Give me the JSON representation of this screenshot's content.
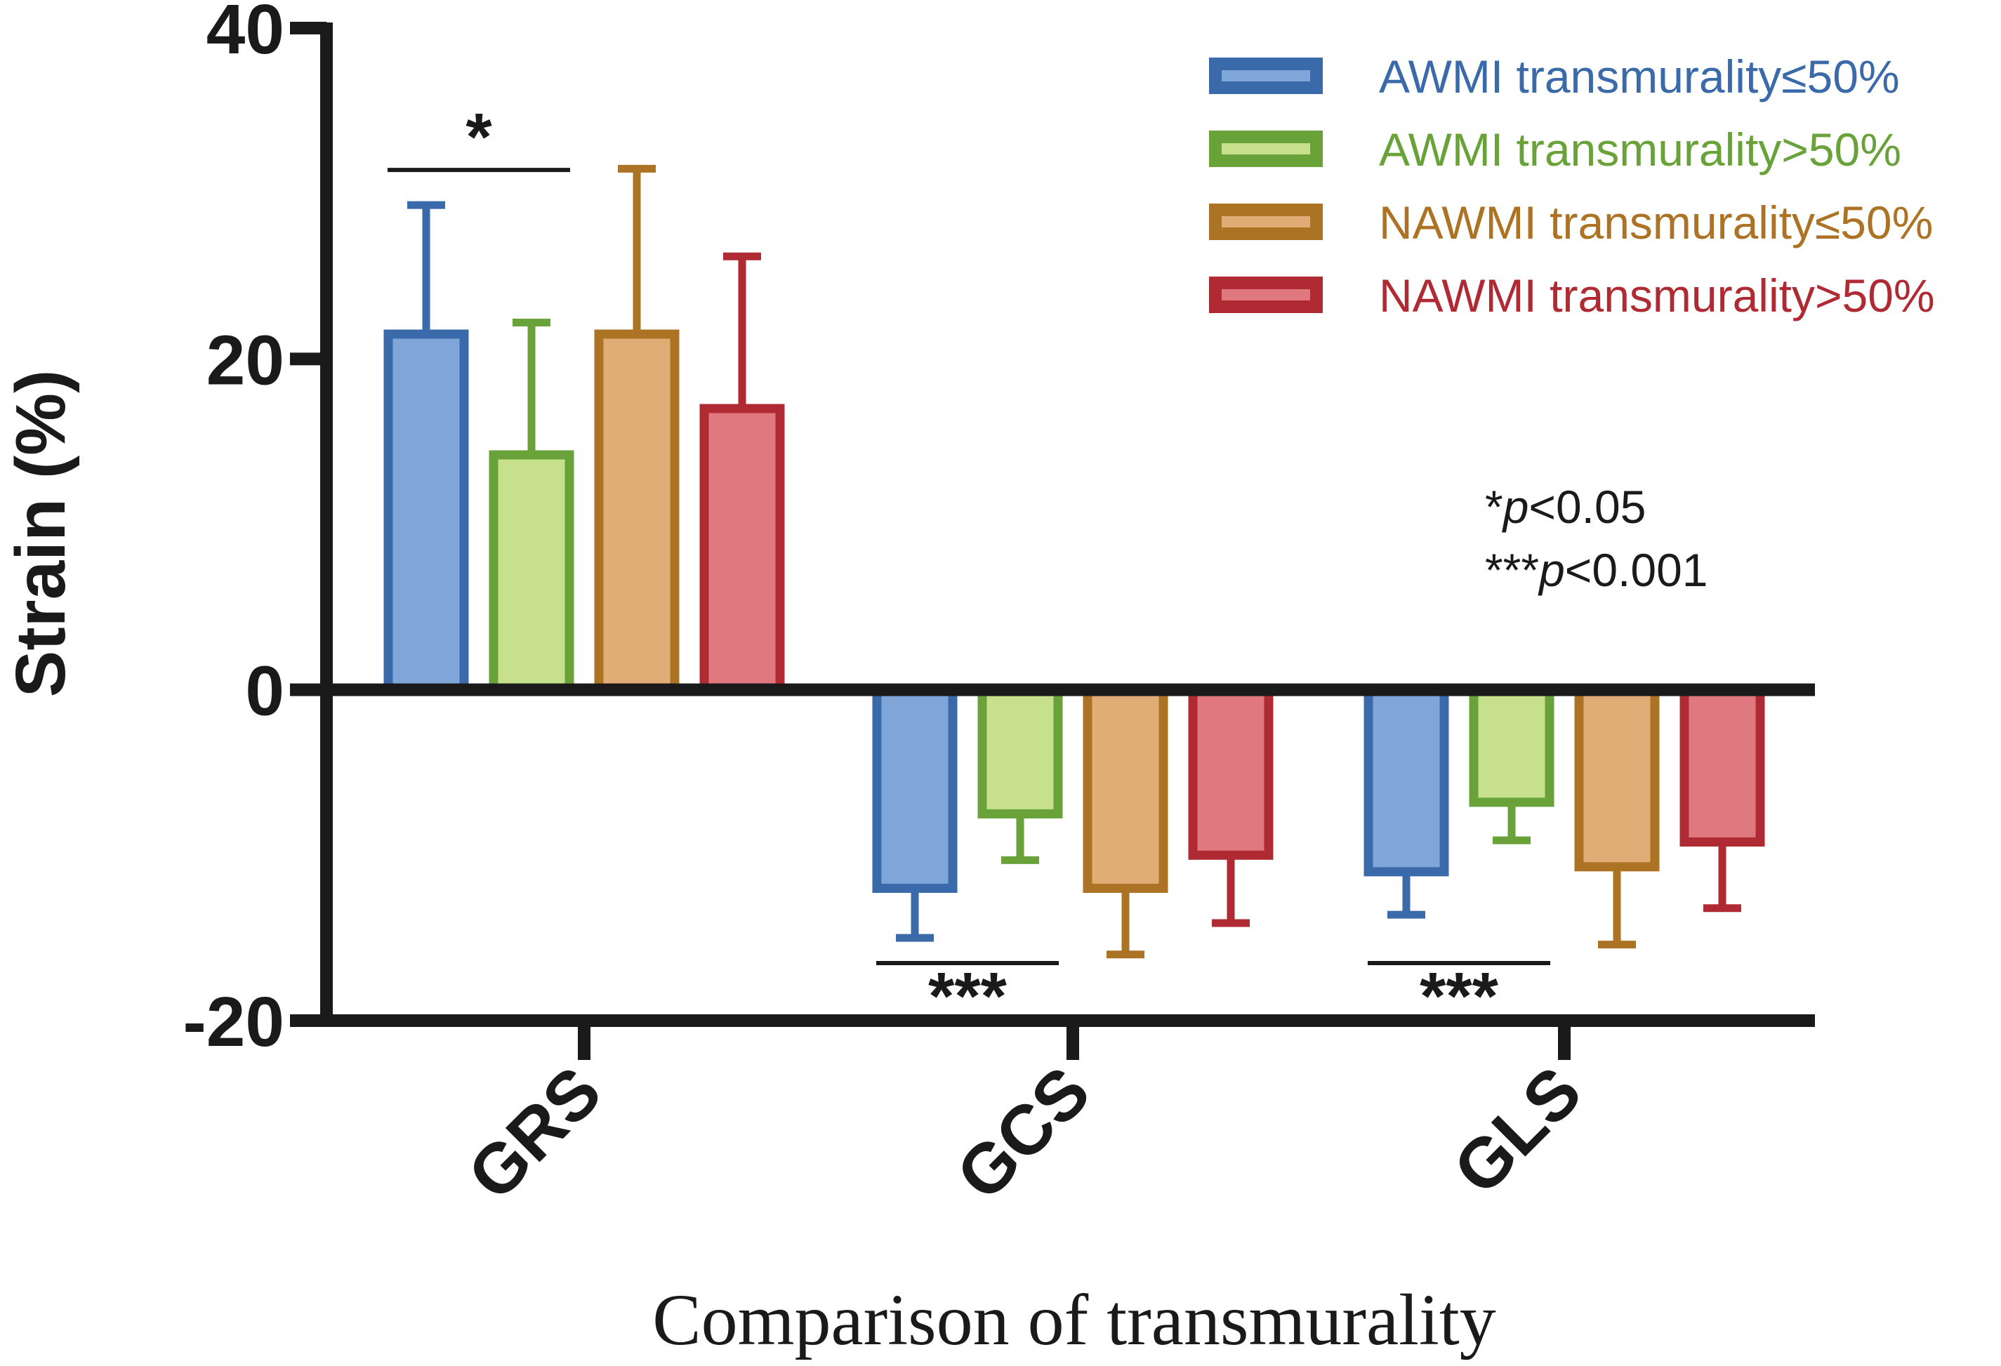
{
  "chart_data": {
    "type": "bar",
    "title": "",
    "xlabel": "Comparison of transmurality",
    "ylabel": "Strain (%)",
    "ylim": [
      -20,
      40
    ],
    "yticks": [
      40,
      20,
      0,
      -20
    ],
    "ytick_labels": [
      "40",
      "20",
      "0",
      "-20"
    ],
    "categories": [
      "GRS",
      "GCS",
      "GLS"
    ],
    "series": [
      {
        "name": "AWMI transmurality≤50%",
        "values": [
          21.5,
          -12.0,
          -11.0
        ],
        "errors": [
          7.8,
          3.0,
          2.6
        ],
        "edge_color": "#3a6aa9",
        "fill_color": "#80a6d9"
      },
      {
        "name": "AWMI transmurality>50%",
        "values": [
          14.2,
          -7.5,
          -6.8
        ],
        "errors": [
          8.0,
          2.8,
          2.3
        ],
        "edge_color": "#6aa23a",
        "fill_color": "#c6e08e"
      },
      {
        "name": "NAWMI transmurality≤50%",
        "values": [
          21.5,
          -12.0,
          -10.7
        ],
        "errors": [
          10.0,
          4.0,
          4.7
        ],
        "edge_color": "#ad7324",
        "fill_color": "#e0ad76"
      },
      {
        "name": "NAWMI transmurality>50%",
        "values": [
          17.0,
          -10.0,
          -9.2
        ],
        "errors": [
          9.2,
          4.1,
          4.0
        ],
        "edge_color": "#b02a33",
        "fill_color": "#e07880"
      }
    ],
    "significance": [
      {
        "category": "GRS",
        "series": [
          0,
          1
        ],
        "label": "*",
        "position": "above"
      },
      {
        "category": "GCS",
        "series": [
          0,
          1
        ],
        "label": "***",
        "position": "below"
      },
      {
        "category": "GLS",
        "series": [
          0,
          1
        ],
        "label": "***",
        "position": "below"
      }
    ],
    "notes": [
      {
        "prefix": "*",
        "italic": "p",
        "suffix": "<0.05"
      },
      {
        "prefix": "***",
        "italic": "p",
        "suffix": "<0.001"
      }
    ],
    "legend_position": "top-right",
    "grid": false
  }
}
